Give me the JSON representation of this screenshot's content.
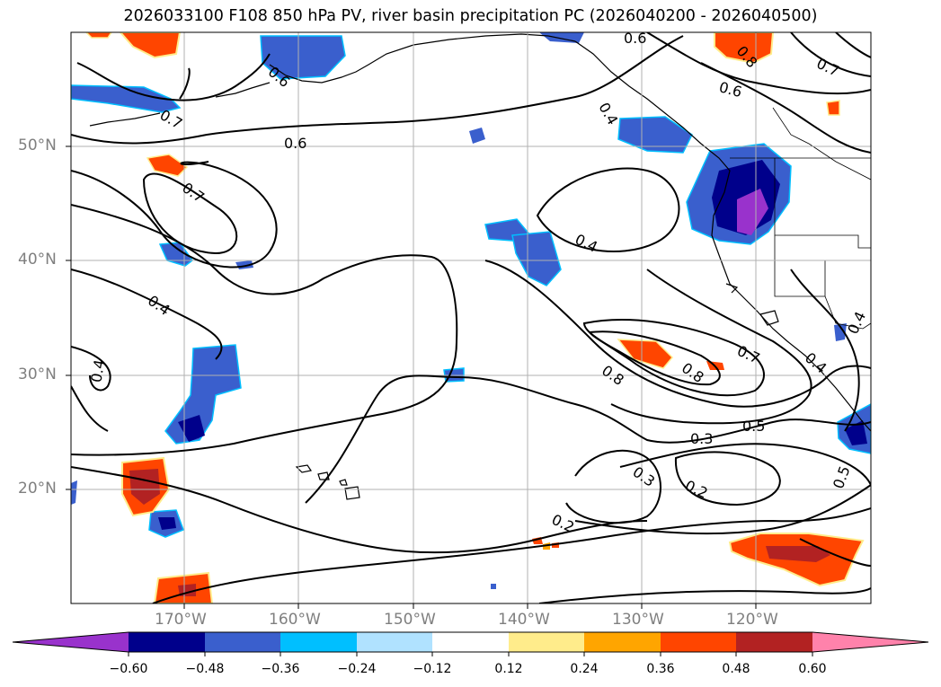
{
  "title": "2026033100 F108 850 hPa PV, river basin precipitation PC (2026040200 - 2026040500)",
  "lat_labels": [
    "50°N",
    "40°N",
    "30°N",
    "20°N"
  ],
  "lon_labels": [
    "170°W",
    "160°W",
    "150°W",
    "140°W",
    "130°W",
    "120°W"
  ],
  "contour_labels": [
    "0.7",
    "0.6",
    "0.7",
    "0.4",
    "0.4",
    "0.6",
    "0.6",
    "0.8",
    "0.7",
    "0.4",
    "0.6",
    "0.8",
    "0.7",
    "0.5",
    "0.3",
    "0.3",
    "0.2",
    "0.2",
    "0.5",
    "0.4",
    "0.4",
    "0.8",
    "0.4"
  ],
  "colorbar": {
    "ticks": [
      "−0.60",
      "−0.48",
      "−0.36",
      "−0.24",
      "−0.12",
      "0.12",
      "0.24",
      "0.36",
      "0.48",
      "0.60"
    ],
    "colors": [
      "#9932cc",
      "#00008b",
      "#3a5fcd",
      "#00bfff",
      "#b0e2ff",
      "#ffffff",
      "#ffec8b",
      "#ffa500",
      "#ff4500",
      "#b22222",
      "#ff82ab"
    ]
  }
}
